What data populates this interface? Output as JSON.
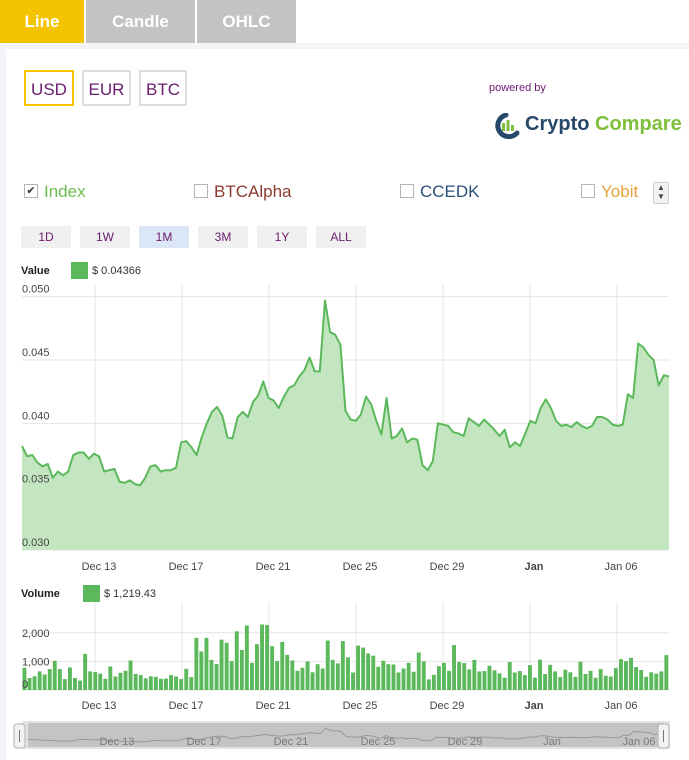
{
  "tabs": [
    "Line",
    "Candle",
    "OHLC"
  ],
  "currencies": [
    "USD",
    "EUR",
    "BTC"
  ],
  "powered_by": "powered by",
  "logo": {
    "part1": "Crypto",
    "part2": "Compare"
  },
  "exchanges": [
    {
      "label": "Index",
      "checked": true,
      "color": "#6bbf4e"
    },
    {
      "label": "BTCAlpha",
      "checked": false,
      "color": "#8b3a2f"
    },
    {
      "label": "CCEDK",
      "checked": false,
      "color": "#2a4f7a"
    },
    {
      "label": "Yobit",
      "checked": false,
      "color": "#e8a23a"
    }
  ],
  "periods": [
    "1D",
    "1W",
    "1M",
    "3M",
    "1Y",
    "ALL"
  ],
  "value_legend": {
    "label": "Value",
    "value": "$ 0.04366"
  },
  "volume_legend": {
    "label": "Volume",
    "value": "$ 1,219.43"
  },
  "colors": {
    "accent": "#f5c400",
    "series": "#5bb85b",
    "area": "#c3e6c0",
    "purple": "#6a1b6e"
  },
  "chart_data": [
    {
      "type": "area",
      "title": "",
      "ylabel": "Value",
      "ylim": [
        0.03,
        0.051
      ],
      "yticks": [
        "0.030",
        "0.035",
        "0.040",
        "0.045",
        "0.050"
      ],
      "xticks": [
        "Dec 13",
        "Dec 17",
        "Dec 21",
        "Dec 25",
        "Dec 29",
        "Jan",
        "Jan 06"
      ],
      "x_range_days": [
        0,
        30
      ],
      "x_tick_days": [
        3.5,
        7.5,
        11.5,
        15.5,
        19.5,
        23.5,
        27.5
      ],
      "series": [
        {
          "values": [
            0.0382,
            0.0374,
            0.0375,
            0.0369,
            0.0366,
            0.0368,
            0.0357,
            0.0362,
            0.0359,
            0.0362,
            0.0375,
            0.0377,
            0.0377,
            0.0372,
            0.0376,
            0.0374,
            0.0362,
            0.0363,
            0.0364,
            0.0354,
            0.0353,
            0.0355,
            0.0352,
            0.0351,
            0.0357,
            0.0366,
            0.0367,
            0.0362,
            0.0363,
            0.0363,
            0.0365,
            0.0385,
            0.0386,
            0.0381,
            0.0375,
            0.0389,
            0.04,
            0.0409,
            0.0413,
            0.0406,
            0.0389,
            0.0388,
            0.0405,
            0.0409,
            0.0405,
            0.0417,
            0.0422,
            0.0433,
            0.042,
            0.0418,
            0.0412,
            0.0421,
            0.0428,
            0.043,
            0.0437,
            0.0442,
            0.0452,
            0.0441,
            0.0441,
            0.0497,
            0.0472,
            0.047,
            0.0462,
            0.041,
            0.0403,
            0.0402,
            0.0407,
            0.0421,
            0.0415,
            0.0402,
            0.0391,
            0.042,
            0.0388,
            0.039,
            0.0396,
            0.0385,
            0.0388,
            0.0387,
            0.0367,
            0.0363,
            0.037,
            0.04,
            0.0399,
            0.0398,
            0.0393,
            0.0392,
            0.039,
            0.0404,
            0.0401,
            0.0398,
            0.0403,
            0.0399,
            0.0395,
            0.039,
            0.0395,
            0.0381,
            0.0385,
            0.0382,
            0.0392,
            0.0402,
            0.04,
            0.0412,
            0.0419,
            0.0412,
            0.0402,
            0.0398,
            0.0399,
            0.0397,
            0.0401,
            0.0398,
            0.0396,
            0.0398,
            0.0405,
            0.0405,
            0.0403,
            0.0399,
            0.0398,
            0.0399,
            0.0423,
            0.042,
            0.0463,
            0.046,
            0.0454,
            0.045,
            0.043,
            0.0438,
            0.0437
          ]
        }
      ]
    },
    {
      "type": "bar",
      "title": "",
      "ylabel": "Volume",
      "ylim": [
        0,
        2900
      ],
      "yticks": [
        "0",
        "1,000",
        "2,000"
      ],
      "xticks": [
        "Dec 13",
        "Dec 17",
        "Dec 21",
        "Dec 25",
        "Dec 29",
        "Jan",
        "Jan 06"
      ],
      "series": [
        {
          "values": [
            780,
            420,
            480,
            650,
            540,
            730,
            1020,
            730,
            380,
            790,
            420,
            330,
            1260,
            650,
            630,
            570,
            390,
            820,
            470,
            600,
            670,
            1030,
            560,
            520,
            410,
            480,
            460,
            390,
            400,
            520,
            470,
            380,
            740,
            450,
            1820,
            1350,
            1820,
            1050,
            910,
            1760,
            1650,
            1010,
            2050,
            1400,
            2250,
            950,
            1600,
            2290,
            2270,
            1530,
            1010,
            1680,
            1230,
            1030,
            670,
            780,
            1000,
            620,
            900,
            750,
            1730,
            1050,
            930,
            1710,
            1140,
            610,
            1550,
            1480,
            1280,
            1200,
            810,
            1020,
            900,
            890,
            610,
            750,
            950,
            640,
            1310,
            1000,
            370,
            530,
            830,
            950,
            670,
            1570,
            980,
            940,
            720,
            1050,
            650,
            660,
            850,
            690,
            580,
            430,
            980,
            610,
            660,
            520,
            870,
            430,
            1060,
            560,
            880,
            650,
            450,
            710,
            620,
            460,
            990,
            560,
            670,
            430,
            730,
            500,
            470,
            760,
            1080,
            1010,
            1120,
            800,
            700,
            460,
            620,
            570,
            650,
            1220
          ]
        }
      ]
    }
  ]
}
